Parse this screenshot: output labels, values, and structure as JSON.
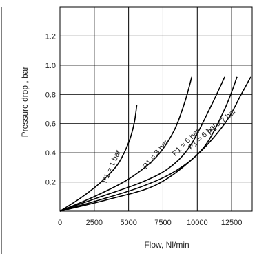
{
  "chart_data": {
    "type": "line",
    "title": "",
    "xlabel": "Flow, Nl/min",
    "ylabel": "Pressure drop , bar",
    "xlim": [
      0,
      14000
    ],
    "ylim": [
      0,
      1.4
    ],
    "x_ticks": [
      0,
      2500,
      5000,
      7500,
      10000,
      12500
    ],
    "x_tick_labels": [
      "0",
      "2500",
      "5000",
      "7500",
      "10000",
      "12500"
    ],
    "y_ticks": [
      0.2,
      0.4,
      0.6,
      0.8,
      1.0,
      1.2
    ],
    "y_tick_labels": [
      "0.2",
      "0.4",
      "0.6",
      "0.8",
      "1.0",
      "1.2"
    ],
    "grid": true,
    "legend": "none",
    "series": [
      {
        "name": "P1 = 1 bar",
        "x": [
          0,
          1500,
          3000,
          4200,
          5000,
          5400,
          5600
        ],
        "y": [
          0,
          0.09,
          0.2,
          0.32,
          0.47,
          0.6,
          0.73
        ]
      },
      {
        "name": "P1 = 3 bar",
        "x": [
          0,
          2500,
          5000,
          7000,
          8300,
          9100,
          9600
        ],
        "y": [
          0,
          0.1,
          0.22,
          0.37,
          0.55,
          0.75,
          0.92
        ]
      },
      {
        "name": "P1 = 5 bar",
        "x": [
          0,
          3000,
          6000,
          8000,
          9500,
          11000,
          12000
        ],
        "y": [
          0,
          0.1,
          0.2,
          0.3,
          0.45,
          0.72,
          0.92
        ]
      },
      {
        "name": "P1 = 6 bar",
        "x": [
          0,
          3000,
          6000,
          8500,
          10500,
          12000,
          12900
        ],
        "y": [
          0,
          0.08,
          0.17,
          0.28,
          0.44,
          0.7,
          0.92
        ]
      },
      {
        "name": "P1 = 7 bar",
        "x": [
          0,
          3500,
          7000,
          9800,
          12000,
          13200,
          13900
        ],
        "y": [
          0,
          0.08,
          0.18,
          0.37,
          0.6,
          0.8,
          0.92
        ]
      }
    ]
  }
}
